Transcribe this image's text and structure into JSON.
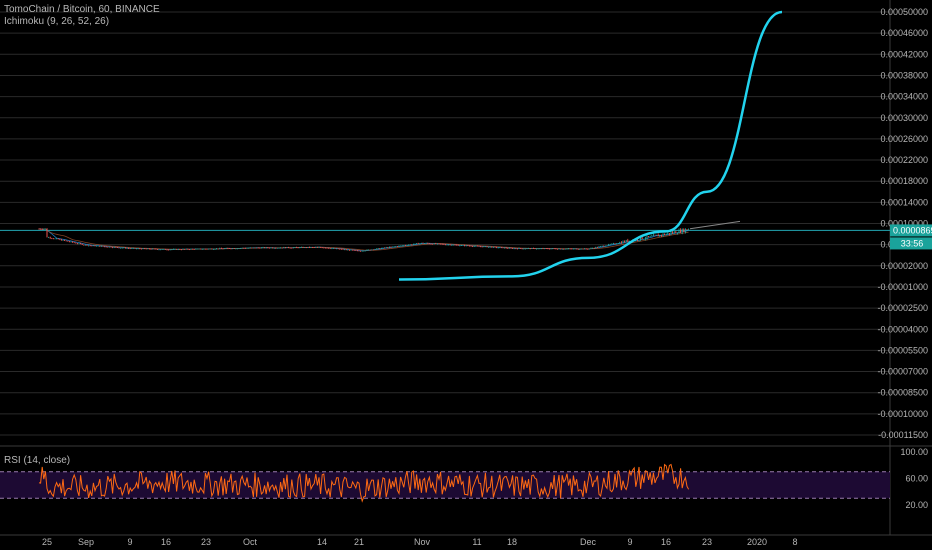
{
  "header": {
    "symbol_line": "TomoChain / Bitcoin, 60, BINANCE",
    "indicator_line": "Ichimoku (9, 26, 52, 26)",
    "rsi_line": "RSI (14, close)"
  },
  "colors": {
    "background": "#000000",
    "grid": "#2a2a2a",
    "up_candle": "#26a69a",
    "down_candle": "#ef5350",
    "curve": "#22d3ee",
    "price_line": "#22a6b3",
    "rsi_line": "#ff6a13",
    "rsi_band": "#1d0a33"
  },
  "chart_data": [
    {
      "type": "line",
      "title": "",
      "y_axis_ticks": [
        "0.00050000",
        "0.00046000",
        "0.00042000",
        "0.00038000",
        "0.00034000",
        "0.00030000",
        "0.00026000",
        "0.00022000",
        "0.00018000",
        "0.00014000",
        "0.00010000",
        "0.00006000",
        "0.00002000",
        "-0.00001000",
        "-0.00002500",
        "-0.00004000",
        "-0.00005500",
        "-0.00007000",
        "-0.00008500",
        "-0.00010000",
        "-0.00011500"
      ],
      "x_axis_ticks": [
        "25",
        "Sep",
        "9",
        "16",
        "23",
        "Oct",
        "14",
        "21",
        "Nov",
        "11",
        "18",
        "Dec",
        "9",
        "16",
        "23",
        "2020",
        "8"
      ],
      "price_tag": "0.00008690",
      "countdown_tag": "33:56",
      "series": [
        {
          "x": [
            "25",
            "Sep",
            "9",
            "16",
            "23",
            "Oct",
            "14",
            "21",
            "Nov",
            "11",
            "18",
            "Dec",
            "9",
            "16",
            "20"
          ],
          "values": [
            7.45e-05,
            5.9e-05,
            5.3e-05,
            5.1e-05,
            5.2e-05,
            5.4e-05,
            5.5e-05,
            4.8e-05,
            6.3e-05,
            5.7e-05,
            5.3e-05,
            5.2e-05,
            6.8e-05,
            8e-05,
            9e-05
          ]
        }
      ],
      "curve": {
        "x": [
          "Oct 31",
          "Nov 18",
          "Dec 1",
          "Dec 16",
          "Dec 23",
          "Jan 5"
        ],
        "y": [
          5e-07,
          5e-06,
          3.5e-05,
          8.5e-05,
          0.00016,
          0.0005
        ]
      }
    },
    {
      "type": "line",
      "title": "RSI (14, close)",
      "y_axis_ticks": [
        "100.00",
        "60.00",
        "20.00"
      ],
      "ylim": [
        0,
        100
      ],
      "bands": [
        30,
        70
      ],
      "series": [
        {
          "x": [
            "25",
            "Sep",
            "9",
            "16",
            "23",
            "Oct",
            "14",
            "21",
            "Nov",
            "11",
            "18",
            "Dec",
            "9",
            "16",
            "20"
          ],
          "values": [
            48,
            46,
            50,
            54,
            52,
            50,
            49,
            44,
            56,
            50,
            48,
            49,
            60,
            64,
            62
          ]
        }
      ]
    }
  ]
}
